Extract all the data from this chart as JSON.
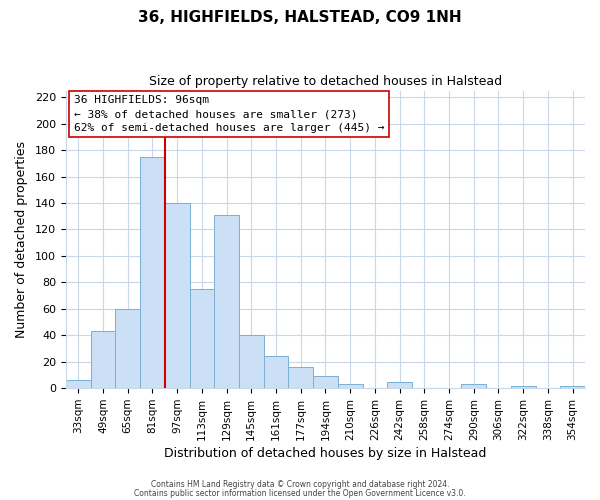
{
  "title": "36, HIGHFIELDS, HALSTEAD, CO9 1NH",
  "subtitle": "Size of property relative to detached houses in Halstead",
  "xlabel": "Distribution of detached houses by size in Halstead",
  "ylabel": "Number of detached properties",
  "bar_labels": [
    "33sqm",
    "49sqm",
    "65sqm",
    "81sqm",
    "97sqm",
    "113sqm",
    "129sqm",
    "145sqm",
    "161sqm",
    "177sqm",
    "194sqm",
    "210sqm",
    "226sqm",
    "242sqm",
    "258sqm",
    "274sqm",
    "290sqm",
    "306sqm",
    "322sqm",
    "338sqm",
    "354sqm"
  ],
  "bar_heights": [
    6,
    43,
    60,
    175,
    140,
    75,
    131,
    40,
    24,
    16,
    9,
    3,
    0,
    5,
    0,
    0,
    3,
    0,
    2,
    0,
    2
  ],
  "bar_color": "#cce0f5",
  "bar_edge_color": "#7aafd4",
  "vline_color": "#cc0000",
  "ylim": [
    0,
    225
  ],
  "yticks": [
    0,
    20,
    40,
    60,
    80,
    100,
    120,
    140,
    160,
    180,
    200,
    220
  ],
  "annotation_title": "36 HIGHFIELDS: 96sqm",
  "annotation_line1": "← 38% of detached houses are smaller (273)",
  "annotation_line2": "62% of semi-detached houses are larger (445) →",
  "footer_line1": "Contains HM Land Registry data © Crown copyright and database right 2024.",
  "footer_line2": "Contains public sector information licensed under the Open Government Licence v3.0.",
  "background_color": "#ffffff",
  "grid_color": "#c8d8e8"
}
